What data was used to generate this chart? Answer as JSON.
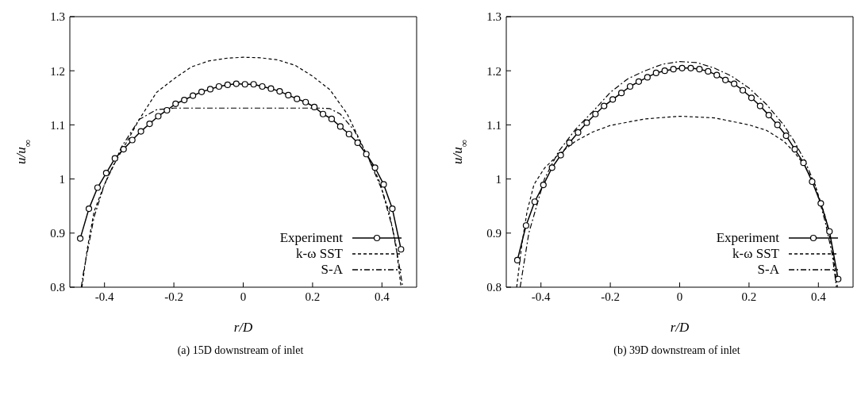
{
  "chart_data": [
    {
      "type": "line",
      "xlabel": "r/D",
      "ylabel": "u/u$_{∞}$",
      "annotations": [
        "(a) 15D downstream of inlet"
      ],
      "xlim": [
        -0.5,
        0.5
      ],
      "xticks": [
        -0.4,
        -0.2,
        0,
        0.2,
        0.4
      ],
      "ylim": [
        0.8,
        1.3
      ],
      "yticks": [
        0.8,
        0.9,
        1,
        1.1,
        1.2,
        1.3
      ],
      "grid": false,
      "legend": "bottom right",
      "series": [
        {
          "name": "Experiment",
          "color": "#000000",
          "line_style": "solid",
          "marker": "circle",
          "x": [
            -0.47,
            -0.445,
            -0.42,
            -0.395,
            -0.37,
            -0.345,
            -0.32,
            -0.295,
            -0.27,
            -0.245,
            -0.22,
            -0.195,
            -0.17,
            -0.145,
            -0.12,
            -0.095,
            -0.07,
            -0.045,
            -0.02,
            0.005,
            0.03,
            0.055,
            0.08,
            0.105,
            0.13,
            0.155,
            0.18,
            0.205,
            0.23,
            0.255,
            0.28,
            0.305,
            0.33,
            0.355,
            0.38,
            0.405,
            0.43,
            0.455
          ],
          "values": [
            0.89,
            0.945,
            0.984,
            1.011,
            1.038,
            1.055,
            1.072,
            1.088,
            1.102,
            1.116,
            1.127,
            1.139,
            1.146,
            1.154,
            1.161,
            1.166,
            1.171,
            1.174,
            1.176,
            1.175,
            1.175,
            1.171,
            1.167,
            1.162,
            1.155,
            1.148,
            1.142,
            1.133,
            1.12,
            1.111,
            1.097,
            1.083,
            1.067,
            1.046,
            1.021,
            0.99,
            0.945,
            0.87
          ]
        },
        {
          "name": "k-ω SST",
          "color": "#000000",
          "line_style": "dashed",
          "marker": "none",
          "x": [
            -0.465,
            -0.45,
            -0.43,
            -0.4,
            -0.37,
            -0.33,
            -0.3,
            -0.25,
            -0.2,
            -0.15,
            -0.1,
            -0.05,
            0,
            0.05,
            0.1,
            0.15,
            0.2,
            0.25,
            0.3,
            0.33,
            0.36,
            0.39,
            0.42,
            0.44,
            0.455
          ],
          "values": [
            0.8,
            0.87,
            0.94,
            0.99,
            1.03,
            1.075,
            1.11,
            1.16,
            1.185,
            1.207,
            1.218,
            1.223,
            1.225,
            1.224,
            1.22,
            1.21,
            1.19,
            1.165,
            1.12,
            1.08,
            1.04,
            1.0,
            0.94,
            0.88,
            0.8
          ]
        },
        {
          "name": "S-A",
          "color": "#000000",
          "line_style": "dashdot",
          "marker": "none",
          "x": [
            -0.467,
            -0.46,
            -0.43,
            -0.4,
            -0.35,
            -0.3,
            -0.25,
            -0.2,
            -0.1,
            0,
            0.1,
            0.22,
            0.25,
            0.28,
            0.32,
            0.36,
            0.4,
            0.43,
            0.45,
            0.46
          ],
          "values": [
            0.8,
            0.83,
            0.93,
            0.99,
            1.06,
            1.11,
            1.128,
            1.131,
            1.131,
            1.131,
            1.131,
            1.131,
            1.13,
            1.12,
            1.09,
            1.04,
            0.98,
            0.91,
            0.84,
            0.8
          ]
        }
      ]
    },
    {
      "type": "line",
      "xlabel": "r/D",
      "ylabel": "u/u$_{∞}$",
      "annotations": [
        "(b) 39D downstream of inlet"
      ],
      "xlim": [
        -0.5,
        0.5
      ],
      "xticks": [
        -0.4,
        -0.2,
        0,
        0.2,
        0.4
      ],
      "ylim": [
        0.8,
        1.3
      ],
      "yticks": [
        0.8,
        0.9,
        1,
        1.1,
        1.2,
        1.3
      ],
      "grid": false,
      "legend": "bottom right",
      "series": [
        {
          "name": "Experiment",
          "color": "#000000",
          "line_style": "solid",
          "marker": "circle",
          "x": [
            -0.468,
            -0.443,
            -0.418,
            -0.393,
            -0.368,
            -0.343,
            -0.318,
            -0.293,
            -0.268,
            -0.243,
            -0.218,
            -0.193,
            -0.168,
            -0.143,
            -0.118,
            -0.093,
            -0.068,
            -0.043,
            -0.018,
            0.007,
            0.032,
            0.057,
            0.082,
            0.107,
            0.132,
            0.157,
            0.182,
            0.207,
            0.232,
            0.257,
            0.282,
            0.307,
            0.332,
            0.357,
            0.382,
            0.407,
            0.432,
            0.457
          ],
          "values": [
            0.85,
            0.914,
            0.958,
            0.989,
            1.021,
            1.044,
            1.067,
            1.086,
            1.104,
            1.12,
            1.135,
            1.147,
            1.159,
            1.171,
            1.18,
            1.188,
            1.196,
            1.2,
            1.203,
            1.205,
            1.205,
            1.203,
            1.199,
            1.192,
            1.183,
            1.176,
            1.164,
            1.15,
            1.135,
            1.118,
            1.1,
            1.08,
            1.055,
            1.03,
            0.995,
            0.955,
            0.903,
            0.815
          ]
        },
        {
          "name": "k-ω SST",
          "color": "#000000",
          "line_style": "dashed",
          "marker": "none",
          "x": [
            -0.47,
            -0.455,
            -0.44,
            -0.42,
            -0.39,
            -0.35,
            -0.3,
            -0.25,
            -0.2,
            -0.1,
            0,
            0.1,
            0.2,
            0.25,
            0.3,
            0.33,
            0.36,
            0.39,
            0.42,
            0.44,
            0.455
          ],
          "values": [
            0.8,
            0.88,
            0.94,
            0.99,
            1.02,
            1.045,
            1.07,
            1.087,
            1.099,
            1.111,
            1.116,
            1.113,
            1.1,
            1.09,
            1.07,
            1.05,
            1.025,
            0.99,
            0.93,
            0.87,
            0.8
          ]
        },
        {
          "name": "S-A",
          "color": "#000000",
          "line_style": "dashdot",
          "marker": "none",
          "x": [
            -0.46,
            -0.435,
            -0.39,
            -0.35,
            -0.3,
            -0.25,
            -0.2,
            -0.15,
            -0.1,
            -0.05,
            0,
            0.05,
            0.1,
            0.15,
            0.2,
            0.25,
            0.3,
            0.33,
            0.36,
            0.39,
            0.42,
            0.44,
            0.452
          ],
          "values": [
            0.8,
            0.9,
            1.0,
            1.05,
            1.092,
            1.125,
            1.16,
            1.185,
            1.2,
            1.212,
            1.217,
            1.215,
            1.205,
            1.19,
            1.168,
            1.138,
            1.1,
            1.07,
            1.035,
            0.99,
            0.92,
            0.86,
            0.8
          ]
        }
      ]
    }
  ]
}
